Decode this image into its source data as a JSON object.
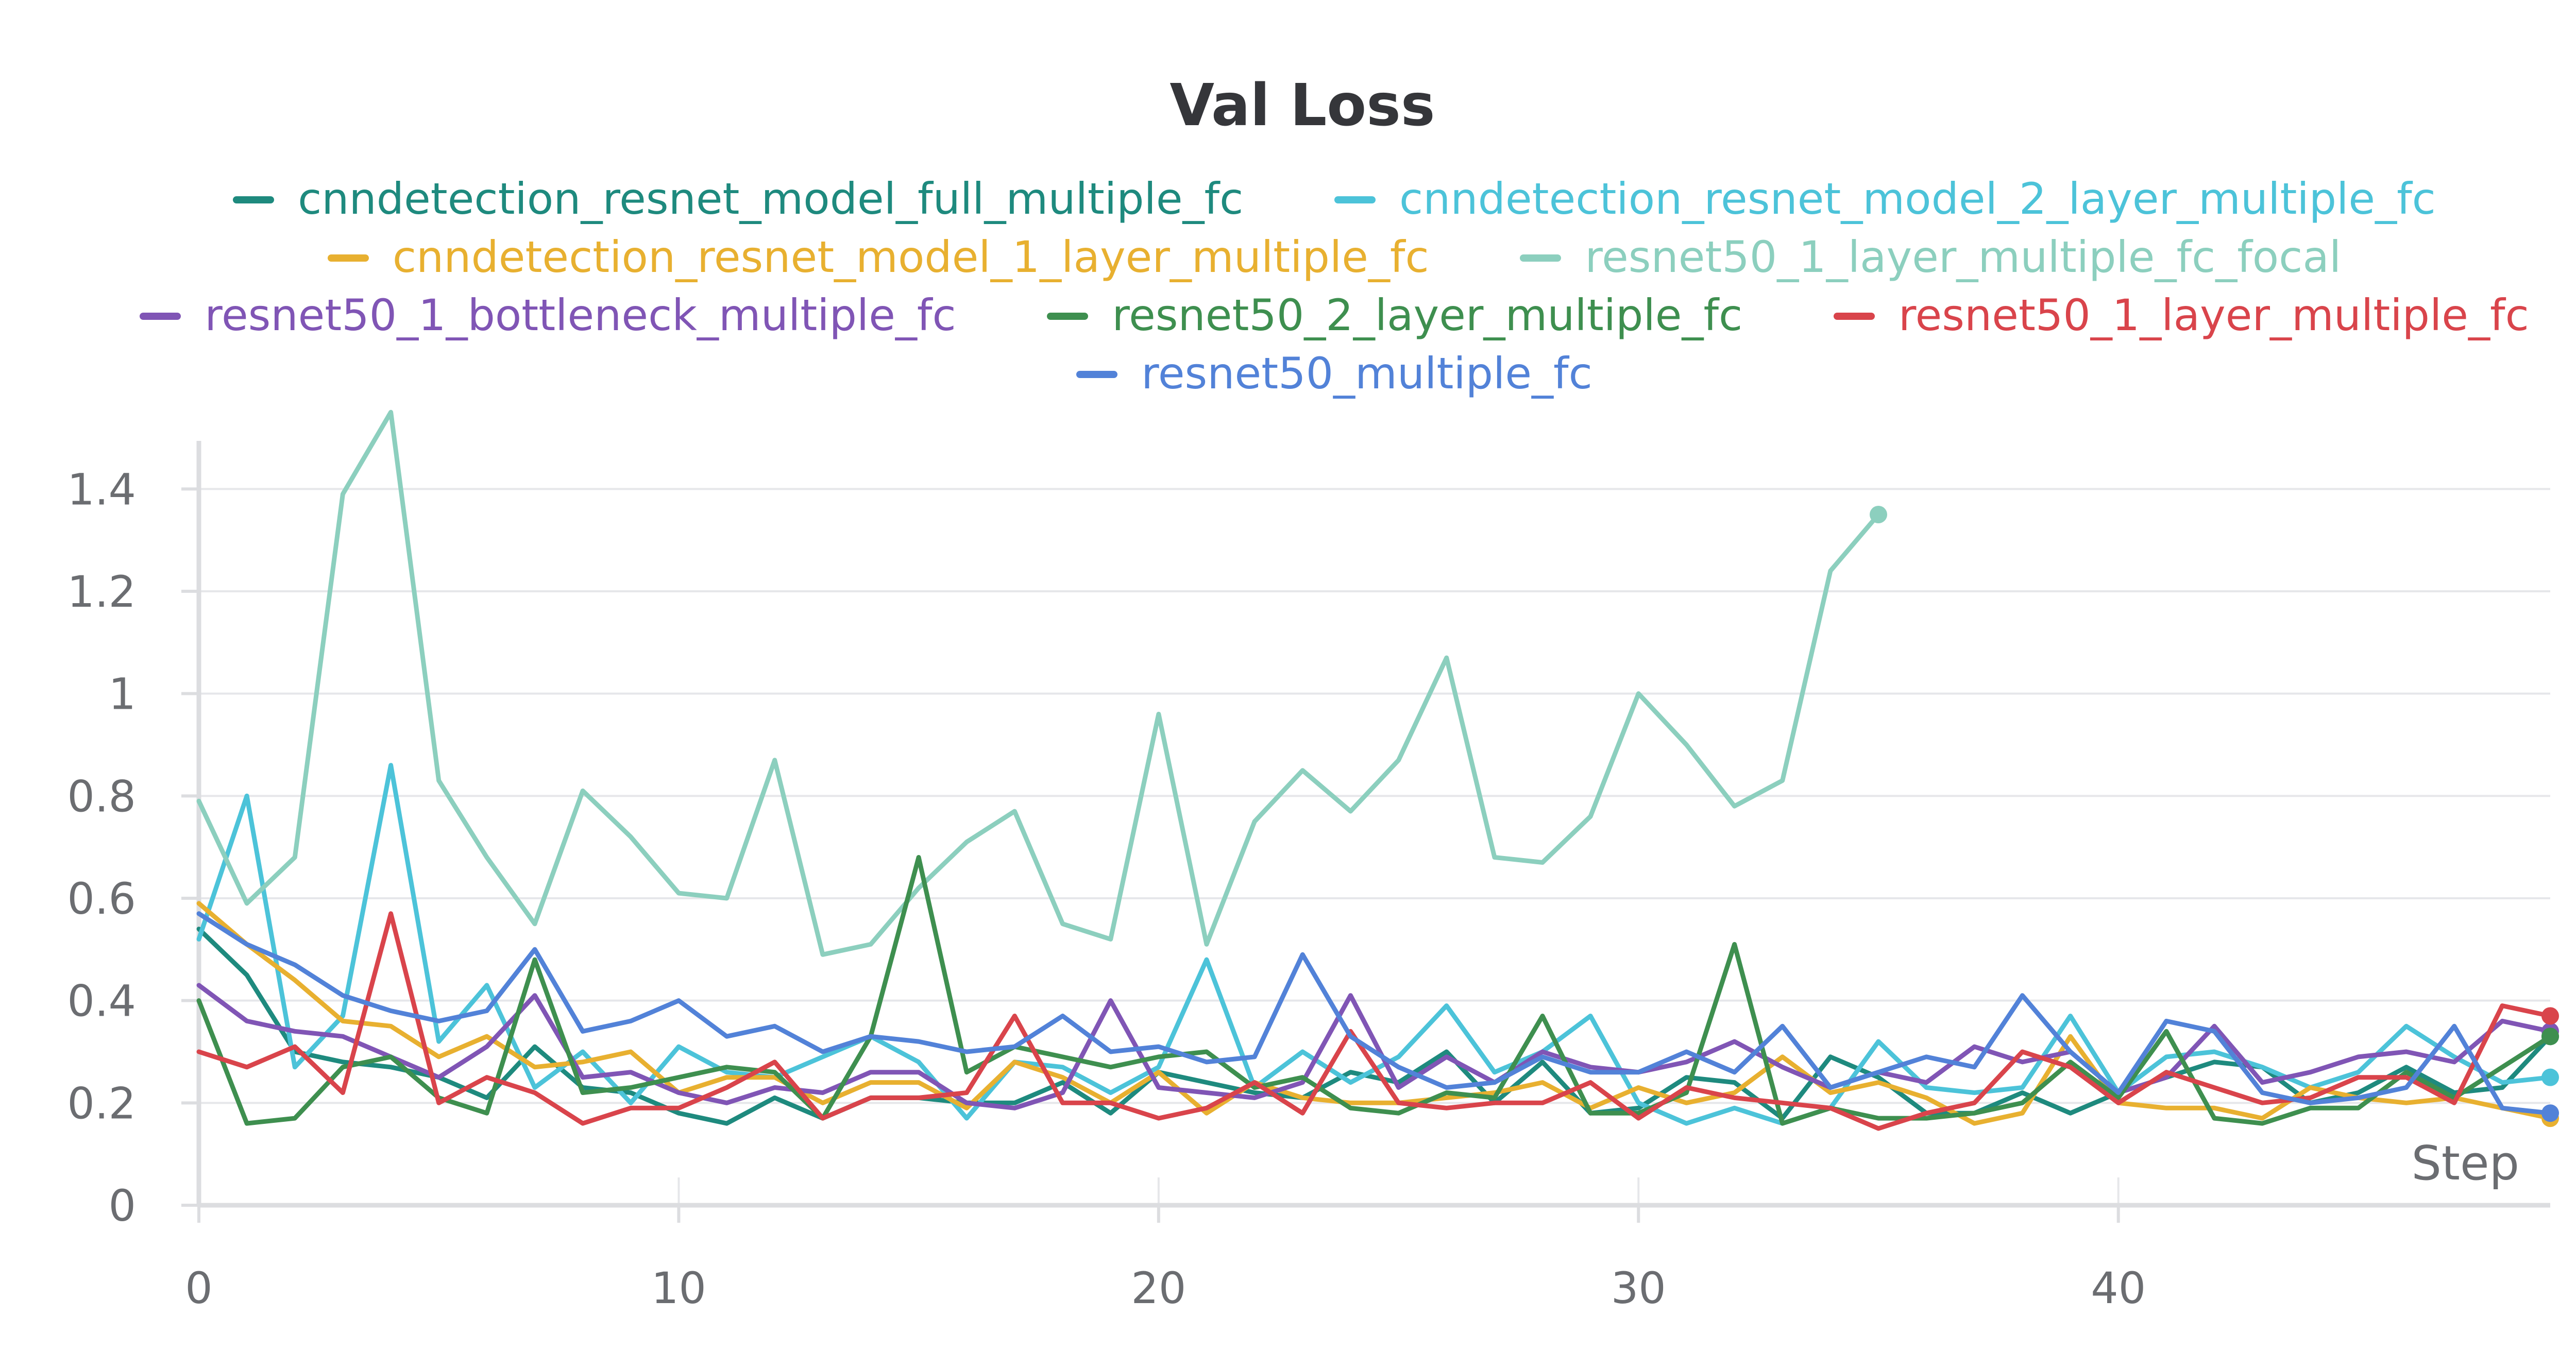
{
  "chart_data": {
    "type": "line",
    "title": "Val Loss",
    "xlabel": "Step",
    "ylabel": "",
    "xlim": [
      0,
      49
    ],
    "ylim": [
      0,
      1.5
    ],
    "x_ticks": [
      0,
      10,
      20,
      30,
      40
    ],
    "y_ticks": [
      0,
      0.2,
      0.4,
      0.6,
      0.8,
      1,
      1.2,
      1.4
    ],
    "x_tick_labels": [
      "0",
      "10",
      "20",
      "30",
      "40"
    ],
    "y_tick_labels": [
      "0",
      "0.2",
      "0.4",
      "0.6",
      "0.8",
      "1",
      "1.2",
      "1.4"
    ],
    "grid": "horizontal",
    "legend_position": "top",
    "series": [
      {
        "name": "cnndetection_resnet_model_full_multiple_fc",
        "color": "#1e8a7e",
        "values": [
          0.54,
          0.45,
          0.3,
          0.28,
          0.27,
          0.25,
          0.21,
          0.31,
          0.23,
          0.22,
          0.18,
          0.16,
          0.21,
          0.17,
          0.21,
          0.21,
          0.2,
          0.2,
          0.24,
          0.18,
          0.26,
          0.24,
          0.22,
          0.21,
          0.26,
          0.24,
          0.3,
          0.2,
          0.28,
          0.18,
          0.19,
          0.25,
          0.24,
          0.17,
          0.29,
          0.25,
          0.18,
          0.18,
          0.22,
          0.18,
          0.22,
          0.25,
          0.28,
          0.27,
          0.2,
          0.22,
          0.27,
          0.22,
          0.23,
          0.33
        ]
      },
      {
        "name": "cnndetection_resnet_model_2_layer_multiple_fc",
        "color": "#4cc3d9",
        "values": [
          0.52,
          0.8,
          0.27,
          0.37,
          0.86,
          0.32,
          0.43,
          0.23,
          0.3,
          0.2,
          0.31,
          0.26,
          0.25,
          0.29,
          0.33,
          0.28,
          0.17,
          0.28,
          0.27,
          0.22,
          0.27,
          0.48,
          0.23,
          0.3,
          0.24,
          0.29,
          0.39,
          0.26,
          0.3,
          0.37,
          0.2,
          0.16,
          0.19,
          0.16,
          0.19,
          0.32,
          0.23,
          0.22,
          0.23,
          0.37,
          0.22,
          0.29,
          0.3,
          0.27,
          0.23,
          0.26,
          0.35,
          0.29,
          0.24,
          0.25
        ]
      },
      {
        "name": "cnndetection_resnet_model_1_layer_multiple_fc",
        "color": "#e8b030",
        "values": [
          0.59,
          0.51,
          0.44,
          0.36,
          0.35,
          0.29,
          0.33,
          0.27,
          0.28,
          0.3,
          0.22,
          0.25,
          0.25,
          0.2,
          0.24,
          0.24,
          0.19,
          0.28,
          0.25,
          0.2,
          0.26,
          0.18,
          0.24,
          0.21,
          0.2,
          0.2,
          0.21,
          0.22,
          0.24,
          0.19,
          0.23,
          0.2,
          0.22,
          0.29,
          0.22,
          0.24,
          0.21,
          0.16,
          0.18,
          0.33,
          0.2,
          0.19,
          0.19,
          0.17,
          0.23,
          0.21,
          0.2,
          0.21,
          0.19,
          0.17
        ]
      },
      {
        "name": "resnet50_1_layer_multiple_fc_focal",
        "color": "#8ccfbe",
        "values": [
          0.79,
          0.59,
          0.68,
          1.39,
          1.55,
          0.83,
          0.68,
          0.55,
          0.81,
          0.72,
          0.61,
          0.6,
          0.87,
          0.49,
          0.51,
          0.62,
          0.71,
          0.77,
          0.55,
          0.52,
          0.96,
          0.51,
          0.75,
          0.85,
          0.77,
          0.87,
          1.07,
          0.68,
          0.67,
          0.76,
          1.0,
          0.9,
          0.78,
          0.83,
          1.24,
          1.35
        ]
      },
      {
        "name": "resnet50_1_bottleneck_multiple_fc",
        "color": "#8055b5",
        "values": [
          0.43,
          0.36,
          0.34,
          0.33,
          0.29,
          0.25,
          0.31,
          0.41,
          0.25,
          0.26,
          0.22,
          0.2,
          0.23,
          0.22,
          0.26,
          0.26,
          0.2,
          0.19,
          0.22,
          0.4,
          0.23,
          0.22,
          0.21,
          0.24,
          0.41,
          0.23,
          0.29,
          0.24,
          0.3,
          0.27,
          0.26,
          0.28,
          0.32,
          0.27,
          0.23,
          0.26,
          0.24,
          0.31,
          0.28,
          0.3,
          0.22,
          0.25,
          0.35,
          0.24,
          0.26,
          0.29,
          0.3,
          0.28,
          0.36,
          0.34
        ]
      },
      {
        "name": "resnet50_2_layer_multiple_fc",
        "color": "#3e8f4f",
        "values": [
          0.4,
          0.16,
          0.17,
          0.27,
          0.29,
          0.21,
          0.18,
          0.48,
          0.22,
          0.23,
          0.25,
          0.27,
          0.26,
          0.17,
          0.33,
          0.68,
          0.26,
          0.31,
          0.29,
          0.27,
          0.29,
          0.3,
          0.23,
          0.25,
          0.19,
          0.18,
          0.22,
          0.21,
          0.37,
          0.18,
          0.18,
          0.22,
          0.51,
          0.16,
          0.19,
          0.17,
          0.17,
          0.18,
          0.2,
          0.28,
          0.21,
          0.34,
          0.17,
          0.16,
          0.19,
          0.19,
          0.26,
          0.21,
          0.27,
          0.33
        ]
      },
      {
        "name": "resnet50_1_layer_multiple_fc",
        "color": "#d9444b",
        "values": [
          0.3,
          0.27,
          0.31,
          0.22,
          0.57,
          0.2,
          0.25,
          0.22,
          0.16,
          0.19,
          0.19,
          0.23,
          0.28,
          0.17,
          0.21,
          0.21,
          0.22,
          0.37,
          0.2,
          0.2,
          0.17,
          0.19,
          0.24,
          0.18,
          0.34,
          0.2,
          0.19,
          0.2,
          0.2,
          0.24,
          0.17,
          0.23,
          0.21,
          0.2,
          0.19,
          0.15,
          0.18,
          0.2,
          0.3,
          0.27,
          0.2,
          0.26,
          0.23,
          0.2,
          0.21,
          0.25,
          0.25,
          0.2,
          0.39,
          0.37
        ]
      },
      {
        "name": "resnet50_multiple_fc",
        "color": "#5282d8",
        "values": [
          0.57,
          0.51,
          0.47,
          0.41,
          0.38,
          0.36,
          0.38,
          0.5,
          0.34,
          0.36,
          0.4,
          0.33,
          0.35,
          0.3,
          0.33,
          0.32,
          0.3,
          0.31,
          0.37,
          0.3,
          0.31,
          0.28,
          0.29,
          0.49,
          0.33,
          0.27,
          0.23,
          0.24,
          0.29,
          0.26,
          0.26,
          0.3,
          0.26,
          0.35,
          0.23,
          0.26,
          0.29,
          0.27,
          0.41,
          0.3,
          0.22,
          0.36,
          0.34,
          0.22,
          0.2,
          0.21,
          0.23,
          0.35,
          0.19,
          0.18
        ]
      }
    ]
  }
}
